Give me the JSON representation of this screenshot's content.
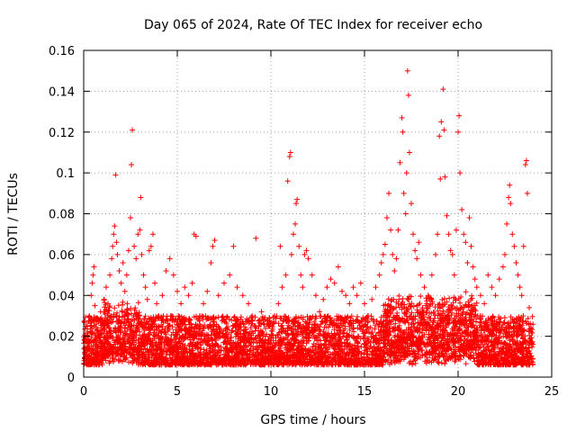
{
  "chart_data": {
    "type": "scatter",
    "title": "Day 065 of 2024, Rate Of TEC Index for receiver echo",
    "xlabel": "GPS time / hours",
    "ylabel": "ROTI / TECUs",
    "xlim": [
      0,
      25
    ],
    "ylim": [
      0,
      0.16
    ],
    "x_ticks": [
      0,
      5,
      10,
      15,
      20,
      25
    ],
    "x_tick_labels": [
      "0",
      "5",
      "10",
      "15",
      "20",
      "25"
    ],
    "y_ticks": [
      0,
      0.02,
      0.04,
      0.06,
      0.08,
      0.1,
      0.12,
      0.14,
      0.16
    ],
    "y_tick_labels": [
      "0",
      "0.02",
      "0.04",
      "0.06",
      "0.08",
      "0.1",
      "0.12",
      "0.14",
      "0.16"
    ],
    "grid": true,
    "marker": "plus",
    "color": "#ff0000",
    "series": [
      {
        "points": [
          [
            0.05,
            0.012
          ],
          [
            0.1,
            0.018
          ],
          [
            0.2,
            0.025
          ],
          [
            0.3,
            0.03
          ],
          [
            0.35,
            0.022
          ],
          [
            0.4,
            0.04
          ],
          [
            0.45,
            0.046
          ],
          [
            0.5,
            0.05
          ],
          [
            0.55,
            0.054
          ],
          [
            0.6,
            0.035
          ],
          [
            0.7,
            0.028
          ],
          [
            0.8,
            0.02
          ],
          [
            0.9,
            0.032
          ],
          [
            1.0,
            0.026
          ],
          [
            1.1,
            0.038
          ],
          [
            1.2,
            0.044
          ],
          [
            1.3,
            0.036
          ],
          [
            1.4,
            0.05
          ],
          [
            1.5,
            0.058
          ],
          [
            1.55,
            0.064
          ],
          [
            1.6,
            0.07
          ],
          [
            1.65,
            0.074
          ],
          [
            1.7,
            0.099
          ],
          [
            1.75,
            0.066
          ],
          [
            1.8,
            0.06
          ],
          [
            1.9,
            0.052
          ],
          [
            2.0,
            0.046
          ],
          [
            2.1,
            0.056
          ],
          [
            2.2,
            0.042
          ],
          [
            2.3,
            0.05
          ],
          [
            2.4,
            0.062
          ],
          [
            2.5,
            0.078
          ],
          [
            2.55,
            0.104
          ],
          [
            2.6,
            0.121
          ],
          [
            2.7,
            0.064
          ],
          [
            2.8,
            0.058
          ],
          [
            2.9,
            0.07
          ],
          [
            3.0,
            0.072
          ],
          [
            3.05,
            0.088
          ],
          [
            3.1,
            0.06
          ],
          [
            3.2,
            0.05
          ],
          [
            3.3,
            0.044
          ],
          [
            3.4,
            0.038
          ],
          [
            3.5,
            0.062
          ],
          [
            3.6,
            0.064
          ],
          [
            3.7,
            0.07
          ],
          [
            3.8,
            0.046
          ],
          [
            3.9,
            0.036
          ],
          [
            4.0,
            0.03
          ],
          [
            4.2,
            0.04
          ],
          [
            4.4,
            0.052
          ],
          [
            4.6,
            0.058
          ],
          [
            4.8,
            0.05
          ],
          [
            5.0,
            0.042
          ],
          [
            5.2,
            0.036
          ],
          [
            5.4,
            0.044
          ],
          [
            5.6,
            0.04
          ],
          [
            5.8,
            0.046
          ],
          [
            5.9,
            0.07
          ],
          [
            6.0,
            0.069
          ],
          [
            6.2,
            0.03
          ],
          [
            6.4,
            0.036
          ],
          [
            6.6,
            0.042
          ],
          [
            6.8,
            0.056
          ],
          [
            6.9,
            0.064
          ],
          [
            7.0,
            0.067
          ],
          [
            7.2,
            0.04
          ],
          [
            7.5,
            0.046
          ],
          [
            7.8,
            0.05
          ],
          [
            8.0,
            0.064
          ],
          [
            8.2,
            0.044
          ],
          [
            8.5,
            0.04
          ],
          [
            8.8,
            0.036
          ],
          [
            9.0,
            0.03
          ],
          [
            9.2,
            0.068
          ],
          [
            9.5,
            0.032
          ],
          [
            9.8,
            0.028
          ],
          [
            10.0,
            0.026
          ],
          [
            10.2,
            0.03
          ],
          [
            10.4,
            0.036
          ],
          [
            10.5,
            0.064
          ],
          [
            10.6,
            0.044
          ],
          [
            10.8,
            0.05
          ],
          [
            10.9,
            0.096
          ],
          [
            11.0,
            0.108
          ],
          [
            11.05,
            0.11
          ],
          [
            11.1,
            0.06
          ],
          [
            11.2,
            0.07
          ],
          [
            11.3,
            0.075
          ],
          [
            11.35,
            0.085
          ],
          [
            11.4,
            0.087
          ],
          [
            11.5,
            0.064
          ],
          [
            11.6,
            0.05
          ],
          [
            11.7,
            0.044
          ],
          [
            11.8,
            0.06
          ],
          [
            11.9,
            0.062
          ],
          [
            12.0,
            0.058
          ],
          [
            12.2,
            0.05
          ],
          [
            12.4,
            0.04
          ],
          [
            12.6,
            0.032
          ],
          [
            12.8,
            0.038
          ],
          [
            13.0,
            0.044
          ],
          [
            13.2,
            0.048
          ],
          [
            13.4,
            0.046
          ],
          [
            13.6,
            0.054
          ],
          [
            13.8,
            0.042
          ],
          [
            14.0,
            0.04
          ],
          [
            14.2,
            0.036
          ],
          [
            14.4,
            0.044
          ],
          [
            14.6,
            0.04
          ],
          [
            14.8,
            0.046
          ],
          [
            15.0,
            0.036
          ],
          [
            15.2,
            0.03
          ],
          [
            15.4,
            0.038
          ],
          [
            15.6,
            0.044
          ],
          [
            15.8,
            0.05
          ],
          [
            15.9,
            0.056
          ],
          [
            16.0,
            0.06
          ],
          [
            16.1,
            0.065
          ],
          [
            16.2,
            0.078
          ],
          [
            16.3,
            0.09
          ],
          [
            16.4,
            0.072
          ],
          [
            16.5,
            0.06
          ],
          [
            16.6,
            0.052
          ],
          [
            16.7,
            0.058
          ],
          [
            16.8,
            0.072
          ],
          [
            16.9,
            0.105
          ],
          [
            17.0,
            0.127
          ],
          [
            17.05,
            0.12
          ],
          [
            17.1,
            0.09
          ],
          [
            17.2,
            0.08
          ],
          [
            17.25,
            0.1
          ],
          [
            17.3,
            0.15
          ],
          [
            17.35,
            0.138
          ],
          [
            17.4,
            0.11
          ],
          [
            17.5,
            0.085
          ],
          [
            17.6,
            0.07
          ],
          [
            17.7,
            0.062
          ],
          [
            17.8,
            0.058
          ],
          [
            17.9,
            0.066
          ],
          [
            18.0,
            0.05
          ],
          [
            18.2,
            0.044
          ],
          [
            18.4,
            0.04
          ],
          [
            18.6,
            0.05
          ],
          [
            18.8,
            0.06
          ],
          [
            18.9,
            0.07
          ],
          [
            19.0,
            0.118
          ],
          [
            19.05,
            0.097
          ],
          [
            19.1,
            0.125
          ],
          [
            19.2,
            0.141
          ],
          [
            19.25,
            0.121
          ],
          [
            19.3,
            0.098
          ],
          [
            19.4,
            0.079
          ],
          [
            19.5,
            0.07
          ],
          [
            19.6,
            0.062
          ],
          [
            19.7,
            0.06
          ],
          [
            19.8,
            0.05
          ],
          [
            19.9,
            0.072
          ],
          [
            20.0,
            0.12
          ],
          [
            20.05,
            0.128
          ],
          [
            20.1,
            0.1
          ],
          [
            20.2,
            0.082
          ],
          [
            20.3,
            0.07
          ],
          [
            20.4,
            0.066
          ],
          [
            20.5,
            0.056
          ],
          [
            20.6,
            0.078
          ],
          [
            20.7,
            0.064
          ],
          [
            20.8,
            0.054
          ],
          [
            20.9,
            0.048
          ],
          [
            21.0,
            0.044
          ],
          [
            21.2,
            0.04
          ],
          [
            21.4,
            0.036
          ],
          [
            21.6,
            0.05
          ],
          [
            21.8,
            0.044
          ],
          [
            22.0,
            0.04
          ],
          [
            22.2,
            0.048
          ],
          [
            22.4,
            0.054
          ],
          [
            22.5,
            0.06
          ],
          [
            22.6,
            0.075
          ],
          [
            22.7,
            0.088
          ],
          [
            22.75,
            0.094
          ],
          [
            22.8,
            0.085
          ],
          [
            22.9,
            0.07
          ],
          [
            23.0,
            0.064
          ],
          [
            23.1,
            0.056
          ],
          [
            23.2,
            0.05
          ],
          [
            23.3,
            0.044
          ],
          [
            23.4,
            0.04
          ],
          [
            23.5,
            0.064
          ],
          [
            23.6,
            0.104
          ],
          [
            23.65,
            0.106
          ],
          [
            23.7,
            0.09
          ],
          [
            23.8,
            0.034
          ],
          [
            23.9,
            0.024
          ],
          [
            24.0,
            0.016
          ]
        ]
      }
    ]
  }
}
